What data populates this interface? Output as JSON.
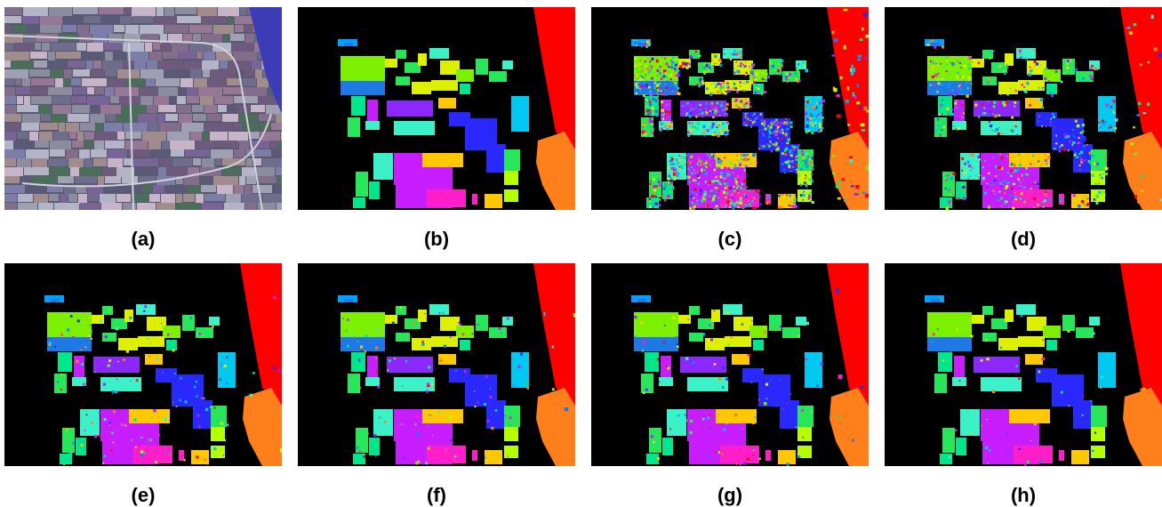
{
  "figure": {
    "panels": [
      {
        "id": "a",
        "caption": "(a)",
        "kind": "satellite-image"
      },
      {
        "id": "b",
        "caption": "(b)",
        "kind": "ground-truth-map"
      },
      {
        "id": "c",
        "caption": "(c)",
        "kind": "classification-map",
        "noise": 0.45
      },
      {
        "id": "d",
        "caption": "(d)",
        "kind": "classification-map",
        "noise": 0.18
      },
      {
        "id": "e",
        "caption": "(e)",
        "kind": "classification-map",
        "noise": 0.05
      },
      {
        "id": "f",
        "caption": "(f)",
        "kind": "classification-map",
        "noise": 0.04
      },
      {
        "id": "g",
        "caption": "(g)",
        "kind": "classification-map",
        "noise": 0.04
      },
      {
        "id": "h",
        "caption": "(h)",
        "kind": "classification-map",
        "noise": 0.02
      }
    ],
    "class_colors": [
      "#ff0000",
      "#ff7f1a",
      "#00c8f0",
      "#7df000",
      "#1e78e6",
      "#00e68c",
      "#28e65a",
      "#2828ff",
      "#8c28ff",
      "#c81eff",
      "#ff1ec8",
      "#ffc800",
      "#dcf000",
      "#3cf0c8",
      "#00a0ff",
      "#b4ff00"
    ],
    "background": "#000000"
  }
}
